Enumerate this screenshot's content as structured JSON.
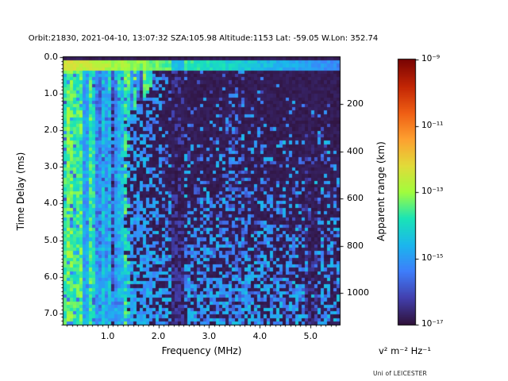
{
  "credit": "Uni of LEICESTER",
  "chart_data": {
    "type": "heatmap",
    "subtype": "radar-sounder-ionogram",
    "title": "Orbit:21830, 2021-04-10, 13:07:32 SZA:105.98 Altitude:1153 Lat: -59.05 W.Lon: 352.74",
    "xlabel": "Frequency (MHz)",
    "ylabel": "Time Delay (ms)",
    "ylabel_right": "Apparent range (km)",
    "x_axis": {
      "range_mhz": [
        0.13,
        5.575
      ],
      "major_ticks_mhz": [
        1.0,
        2.0,
        3.0,
        4.0,
        5.0
      ],
      "major_tick_labels": [
        "1.0",
        "2.0",
        "3.0",
        "4.0",
        "5.0"
      ],
      "minor_tick_step_mhz": 0.1
    },
    "y_axis": {
      "range_ms": [
        0,
        7.31
      ],
      "major_ticks_ms": [
        0,
        1,
        2,
        3,
        4,
        5,
        6,
        7
      ],
      "major_tick_labels": [
        "0.0",
        "1.0",
        "2.0",
        "3.0",
        "4.0",
        "5.0",
        "6.0",
        "7.0"
      ],
      "minor_tick_step_ms": 0.1
    },
    "right_axis": {
      "major_ticks_km": [
        200,
        400,
        600,
        800,
        1000
      ],
      "major_tick_labels": [
        "200",
        "400",
        "600",
        "800",
        "1000"
      ],
      "km_per_ms": 155
    },
    "colorbar": {
      "scale": "log10",
      "range_exponents": [
        -17,
        -9
      ],
      "tick_exponents": [
        -9,
        -11,
        -13,
        -15,
        -17
      ],
      "tick_labels": [
        "10⁻⁹",
        "10⁻¹¹",
        "10⁻¹³",
        "10⁻¹⁵",
        "10⁻¹⁷"
      ],
      "unit_label": "v² m⁻² Hz⁻¹",
      "colormap": "turbo",
      "colormap_stops": [
        [
          0.0,
          "#30123b"
        ],
        [
          0.1,
          "#4240ae"
        ],
        [
          0.2,
          "#3e7efb"
        ],
        [
          0.3,
          "#1bb7ed"
        ],
        [
          0.4,
          "#1ae4b6"
        ],
        [
          0.5,
          "#a1fd3d"
        ],
        [
          0.6,
          "#e2db39"
        ],
        [
          0.7,
          "#fea030"
        ],
        [
          0.8,
          "#ef5e14"
        ],
        [
          0.9,
          "#c22504"
        ],
        [
          1.0,
          "#7a0403"
        ]
      ]
    },
    "grid": {
      "n_freq_bins": 87,
      "n_delay_bins": 80
    },
    "seed": 21830,
    "features": {
      "noise_floor_exp": -16.95,
      "zero_delay_dark_band": {
        "delay_ms": [
          0,
          0.115
        ],
        "exp": -16.92
      },
      "surface_reflection_line": {
        "delay_ms": [
          0.125,
          0.335
        ],
        "exp_at_0mhz": -12.55,
        "exp_slope_per_mhz": -0.55,
        "jitter_exp": 0.6
      },
      "ionosphere_echo_stripes": {
        "edge_freq_top_mhz": 1.95,
        "edge_freq_bottom_mhz": 1.4,
        "edge_knee_ms": [
          0.75,
          1.7
        ],
        "bright_green_below_mhz": 0.5,
        "column_gap_probability": 0.16,
        "cusp_brightening_above_ms": 0.9
      },
      "dark_vertical_bands_mhz": [
        [
          2.24,
          2.5
        ],
        [
          4.9,
          5.16
        ]
      ],
      "enhanced_speckle_band_mhz": [
        3.32,
        3.72
      ],
      "speckle_noise": {
        "base_probability": 0.1,
        "depth_gain": 0.6,
        "exp_min": -16.35,
        "exp_span": 1.55
      }
    }
  }
}
